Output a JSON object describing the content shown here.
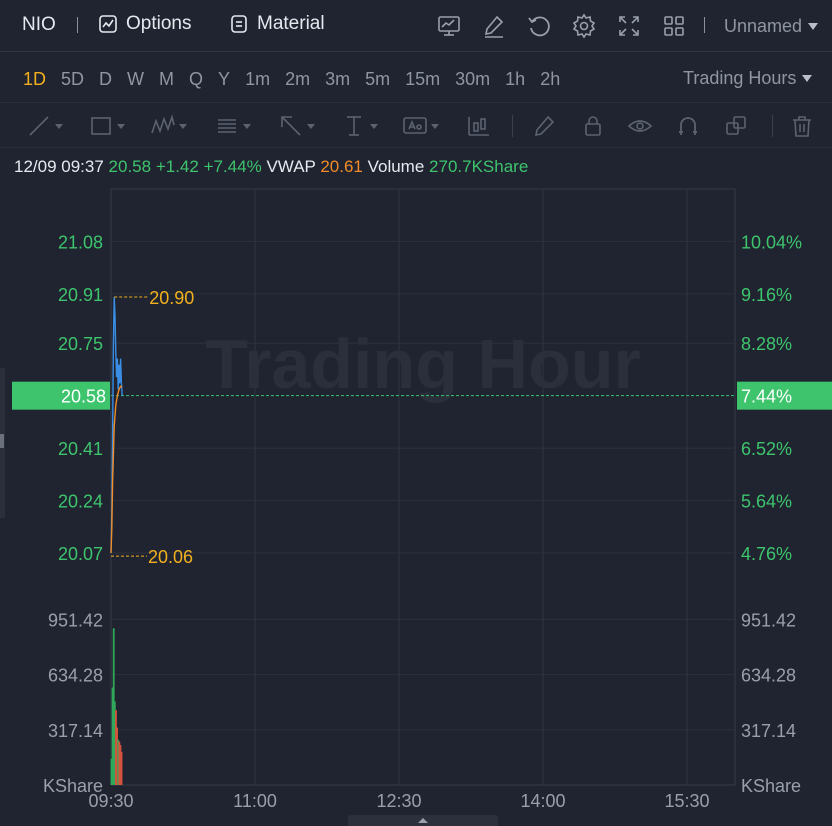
{
  "toolbar": {
    "symbol": "NIO",
    "options_label": "Options",
    "material_label": "Material",
    "icons": [
      "chart-screen-icon",
      "edit-icon",
      "refresh-icon",
      "gear-icon",
      "fullscreen-icon",
      "grid-layout-icon"
    ],
    "layout_name": "Unnamed"
  },
  "periods": {
    "items": [
      "1D",
      "5D",
      "D",
      "W",
      "M",
      "Q",
      "Y",
      "1m",
      "2m",
      "3m",
      "5m",
      "15m",
      "30m",
      "1h",
      "2h"
    ],
    "active": "1D",
    "session_label": "Trading Hours"
  },
  "drawing_tools": [
    "line-tool-icon",
    "rectangle-tool-icon",
    "wave-pattern-icon",
    "fibonacci-icon",
    "arrow-icon",
    "measure-icon",
    "text-annotation-icon",
    "candle-indicator-icon",
    "pen-icon",
    "lock-icon",
    "eye-icon",
    "magnet-icon",
    "layers-icon",
    "trash-icon"
  ],
  "quote": {
    "datetime": "12/09 09:37",
    "price": "20.58",
    "change": "+1.42",
    "change_pct": "+7.44%",
    "vwap_label": "VWAP",
    "vwap": "20.61",
    "volume_label": "Volume",
    "volume": "270.7KShare"
  },
  "colors": {
    "up": "#3ec46d",
    "accent": "#f2b01e",
    "vwap": "#f28c28",
    "price_line": "#3a8ee6",
    "background": "#1f2430"
  },
  "chart_data": {
    "type": "line",
    "watermark": "Trading Hour",
    "price_axis_labels": [
      "21.08",
      "20.91",
      "20.75",
      "20.41",
      "20.24",
      "20.07"
    ],
    "percent_axis_labels": [
      "10.04%",
      "9.16%",
      "8.28%",
      "6.52%",
      "5.64%",
      "4.76%"
    ],
    "current_price_label": "20.58",
    "current_percent_label": "7.44%",
    "current_price": 20.58,
    "ylim": [
      19.95,
      21.25
    ],
    "volume_axis_labels": [
      "951.42",
      "634.28",
      "317.14",
      "KShare"
    ],
    "volume_ylim": [
      0,
      1080
    ],
    "time_labels": [
      "09:30",
      "11:00",
      "12:30",
      "14:00",
      "15:30"
    ],
    "session_minutes": 390,
    "high_marker": {
      "label": "20.90",
      "value": 20.9
    },
    "low_marker": {
      "label": "20.06",
      "value": 20.06
    },
    "series": [
      {
        "name": "Price",
        "points": [
          [
            0,
            20.07
          ],
          [
            0.5,
            20.2
          ],
          [
            1,
            20.45
          ],
          [
            1.5,
            20.75
          ],
          [
            2,
            20.9
          ],
          [
            2.5,
            20.84
          ],
          [
            3,
            20.72
          ],
          [
            3.5,
            20.64
          ],
          [
            4,
            20.7
          ],
          [
            4.5,
            20.6
          ],
          [
            5,
            20.68
          ],
          [
            5.5,
            20.62
          ],
          [
            6,
            20.7
          ],
          [
            6.5,
            20.62
          ],
          [
            7,
            20.58
          ]
        ]
      },
      {
        "name": "VWAP",
        "points": [
          [
            0,
            20.07
          ],
          [
            0.5,
            20.15
          ],
          [
            1,
            20.3
          ],
          [
            2,
            20.48
          ],
          [
            3,
            20.55
          ],
          [
            4,
            20.58
          ],
          [
            5,
            20.6
          ],
          [
            6,
            20.61
          ],
          [
            7,
            20.61
          ]
        ]
      }
    ],
    "volume": [
      {
        "t": 0.3,
        "v": 150,
        "up": true
      },
      {
        "t": 1.0,
        "v": 560,
        "up": true
      },
      {
        "t": 1.7,
        "v": 900,
        "up": true
      },
      {
        "t": 2.4,
        "v": 480,
        "up": true
      },
      {
        "t": 3.1,
        "v": 430,
        "up": false
      },
      {
        "t": 3.8,
        "v": 330,
        "up": false
      },
      {
        "t": 4.5,
        "v": 260,
        "up": true
      },
      {
        "t": 5.2,
        "v": 250,
        "up": false
      },
      {
        "t": 5.9,
        "v": 230,
        "up": false
      },
      {
        "t": 6.6,
        "v": 190,
        "up": false
      }
    ]
  }
}
